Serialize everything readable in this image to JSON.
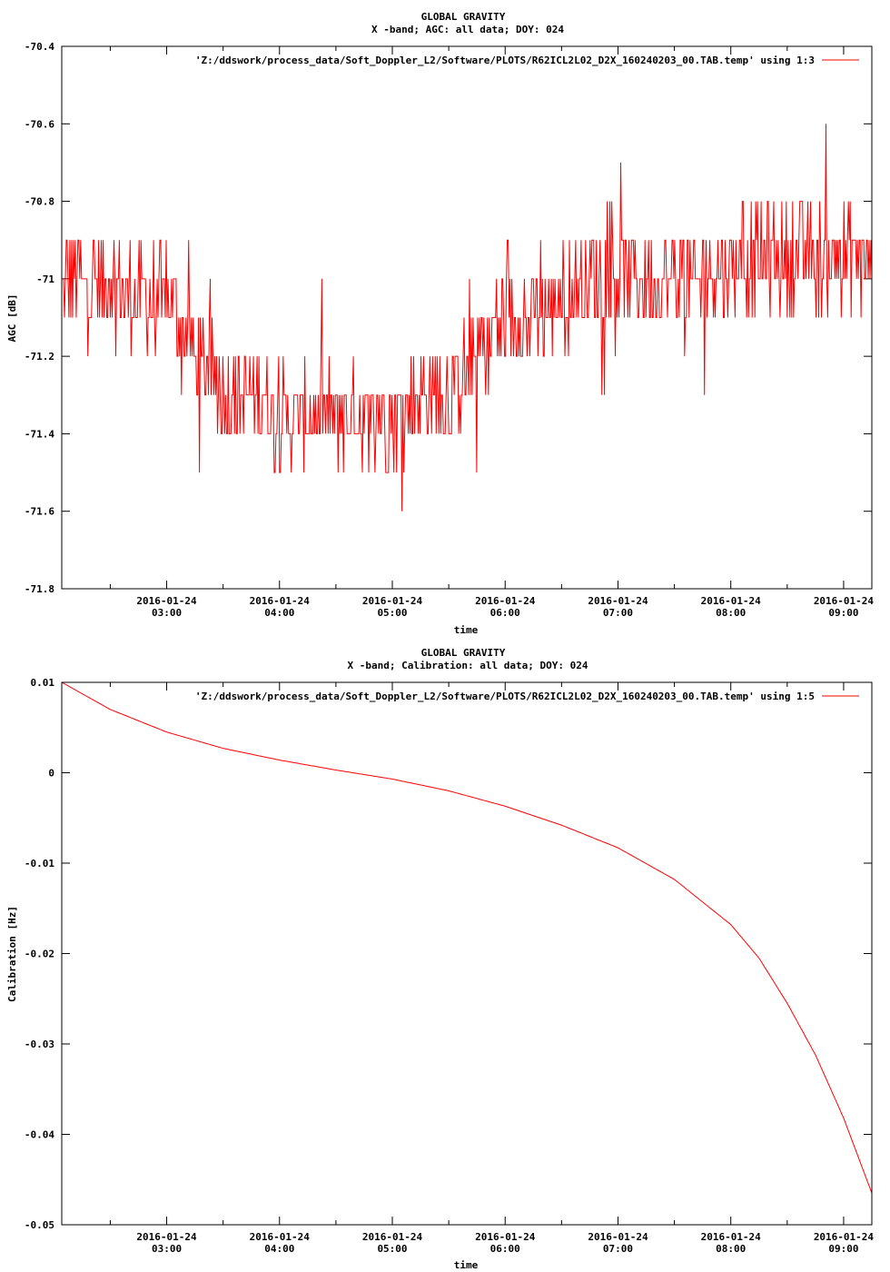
{
  "chart_data": [
    {
      "type": "line",
      "title": "GLOBAL GRAVITY",
      "subtitle": "X -band; AGC: all data; DOY: 024",
      "xlabel": "time",
      "ylabel": "AGC [dB]",
      "ylim": [
        -71.8,
        -70.4
      ],
      "yticks": [
        -70.4,
        -70.6,
        -70.8,
        -71,
        -71.2,
        -71.4,
        -71.6,
        -71.8
      ],
      "ytick_labels": [
        "-70.4",
        "-70.6",
        "-70.8",
        "-71",
        "-71.2",
        "-71.4",
        "-71.6",
        "-71.8"
      ],
      "xlim": [
        2.07,
        9.25
      ],
      "xticks": [
        3,
        4,
        5,
        6,
        7,
        8,
        9
      ],
      "xtick_labels": [
        {
          "date": "2016-01-24",
          "time": "03:00"
        },
        {
          "date": "2016-01-24",
          "time": "04:00"
        },
        {
          "date": "2016-01-24",
          "time": "05:00"
        },
        {
          "date": "2016-01-24",
          "time": "06:00"
        },
        {
          "date": "2016-01-24",
          "time": "07:00"
        },
        {
          "date": "2016-01-24",
          "time": "08:00"
        },
        {
          "date": "2016-01-24",
          "time": "09:00"
        }
      ],
      "x_minor_ticks": [
        2.5,
        3.5,
        4.5,
        5.5,
        6.5,
        7.5,
        8.5
      ],
      "legend": "top-right",
      "series": [
        {
          "name": "'Z:/ddswork/process_data/Soft_Doppler_L2/Software/PLOTS/R62ICL2L02_D2X_160240203_00.TAB.temp' using 1:3",
          "color": "#ff0000",
          "x": [
            2.07,
            2.25,
            2.5,
            2.75,
            3.0,
            3.25,
            3.5,
            3.75,
            4.0,
            4.25,
            4.5,
            4.75,
            5.0,
            5.25,
            5.5,
            5.75,
            6.0,
            6.25,
            6.5,
            6.75,
            7.0,
            7.25,
            7.5,
            7.75,
            8.0,
            8.25,
            8.5,
            8.75,
            9.0,
            9.25
          ],
          "y": [
            -71.0,
            -71.0,
            -71.0,
            -71.05,
            -71.05,
            -71.2,
            -71.3,
            -71.3,
            -71.35,
            -71.35,
            -71.35,
            -71.35,
            -71.35,
            -71.3,
            -71.3,
            -71.2,
            -71.1,
            -71.1,
            -71.05,
            -71.0,
            -71.0,
            -71.0,
            -71.0,
            -71.0,
            -70.95,
            -70.95,
            -70.95,
            -70.95,
            -70.95,
            -70.95
          ],
          "spread": 0.12
        }
      ]
    },
    {
      "type": "line",
      "title": "GLOBAL GRAVITY",
      "subtitle": "X -band; Calibration: all data; DOY: 024",
      "xlabel": "time",
      "ylabel": "Calibration [Hz]",
      "ylim": [
        -0.05,
        0.01
      ],
      "yticks": [
        0.01,
        0,
        -0.01,
        -0.02,
        -0.03,
        -0.04,
        -0.05
      ],
      "ytick_labels": [
        "0.01",
        "0",
        "-0.01",
        "-0.02",
        "-0.03",
        "-0.04",
        "-0.05"
      ],
      "xlim": [
        2.07,
        9.25
      ],
      "xticks": [
        3,
        4,
        5,
        6,
        7,
        8,
        9
      ],
      "xtick_labels": [
        {
          "date": "2016-01-24",
          "time": "03:00"
        },
        {
          "date": "2016-01-24",
          "time": "04:00"
        },
        {
          "date": "2016-01-24",
          "time": "05:00"
        },
        {
          "date": "2016-01-24",
          "time": "06:00"
        },
        {
          "date": "2016-01-24",
          "time": "07:00"
        },
        {
          "date": "2016-01-24",
          "time": "08:00"
        },
        {
          "date": "2016-01-24",
          "time": "09:00"
        }
      ],
      "x_minor_ticks": [
        2.5,
        3.5,
        4.5,
        5.5,
        6.5,
        7.5,
        8.5
      ],
      "legend": "top-right",
      "series": [
        {
          "name": "'Z:/ddswork/process_data/Soft_Doppler_L2/Software/PLOTS/R62ICL2L02_D2X_160240203_00.TAB.temp' using 1:5",
          "color": "#ff0000",
          "x": [
            2.07,
            2.5,
            3.0,
            3.5,
            4.0,
            4.5,
            5.0,
            5.5,
            6.0,
            6.5,
            7.0,
            7.5,
            8.0,
            8.25,
            8.5,
            8.75,
            9.0,
            9.25
          ],
          "y": [
            0.01,
            0.007,
            0.0045,
            0.0027,
            0.0014,
            0.0003,
            -0.0007,
            -0.002,
            -0.0037,
            -0.0058,
            -0.0083,
            -0.0118,
            -0.0168,
            -0.0205,
            -0.0255,
            -0.0312,
            -0.0382,
            -0.0465
          ]
        }
      ]
    }
  ]
}
